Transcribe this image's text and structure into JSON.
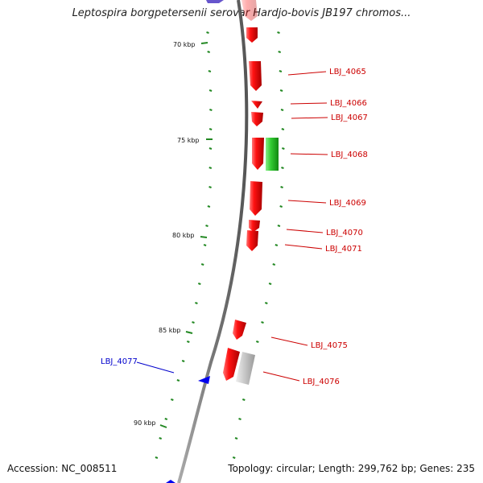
{
  "title": "Leptospira borgpetersenii serovar Hardjo-bovis JB197 chromos...",
  "footer": {
    "accession": "Accession: NC_008511",
    "summary": "Topology: circular; Length: 299,762 bp; Genes: 235"
  },
  "colors": {
    "forward_gene": "#ee0000",
    "reverse_gene": "#0000ee",
    "other_gene": "#22cc22",
    "pseudo_gene": "#bbbbbb",
    "tick": "#228822",
    "backbone": "#808080",
    "label_forward": "#cc0000",
    "label_reverse": "#0000cc"
  },
  "ticks": [
    {
      "label": "70 kbp"
    },
    {
      "label": "75 kbp"
    },
    {
      "label": "80 kbp"
    },
    {
      "label": "85 kbp"
    },
    {
      "label": "90 kbp"
    }
  ],
  "genes": [
    {
      "label": "LBJ_4065",
      "strand": "forward"
    },
    {
      "label": "LBJ_4066",
      "strand": "forward"
    },
    {
      "label": "LBJ_4067",
      "strand": "forward"
    },
    {
      "label": "LBJ_4068",
      "strand": "forward"
    },
    {
      "label": "LBJ_4069",
      "strand": "forward"
    },
    {
      "label": "LBJ_4070",
      "strand": "forward"
    },
    {
      "label": "LBJ_4071",
      "strand": "forward"
    },
    {
      "label": "LBJ_4075",
      "strand": "forward"
    },
    {
      "label": "LBJ_4076",
      "strand": "forward"
    },
    {
      "label": "LBJ_4077",
      "strand": "reverse"
    }
  ]
}
